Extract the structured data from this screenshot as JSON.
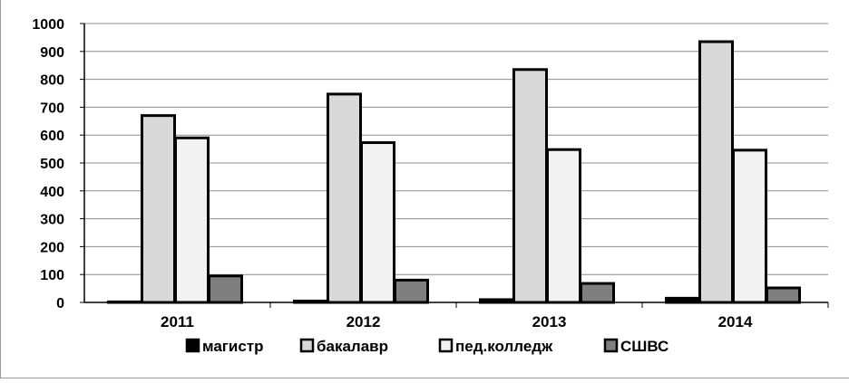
{
  "chart_data": {
    "type": "bar",
    "categories": [
      "2011",
      "2012",
      "2013",
      "2014"
    ],
    "series": [
      {
        "name": "магистр",
        "values": [
          2,
          5,
          10,
          15
        ],
        "color": "#000000"
      },
      {
        "name": "бакалавр",
        "values": [
          670,
          747,
          835,
          935
        ],
        "color": "#d9d9d9"
      },
      {
        "name": "пед.колледж",
        "values": [
          590,
          573,
          548,
          546
        ],
        "color": "#f2f2f2"
      },
      {
        "name": "СШВС",
        "values": [
          95,
          80,
          68,
          52
        ],
        "color": "#7f7f7f"
      }
    ],
    "ylim": [
      0,
      1000
    ],
    "yticks": [
      0,
      100,
      200,
      300,
      400,
      500,
      600,
      700,
      800,
      900,
      1000
    ],
    "grid": true,
    "legend_position": "bottom"
  }
}
